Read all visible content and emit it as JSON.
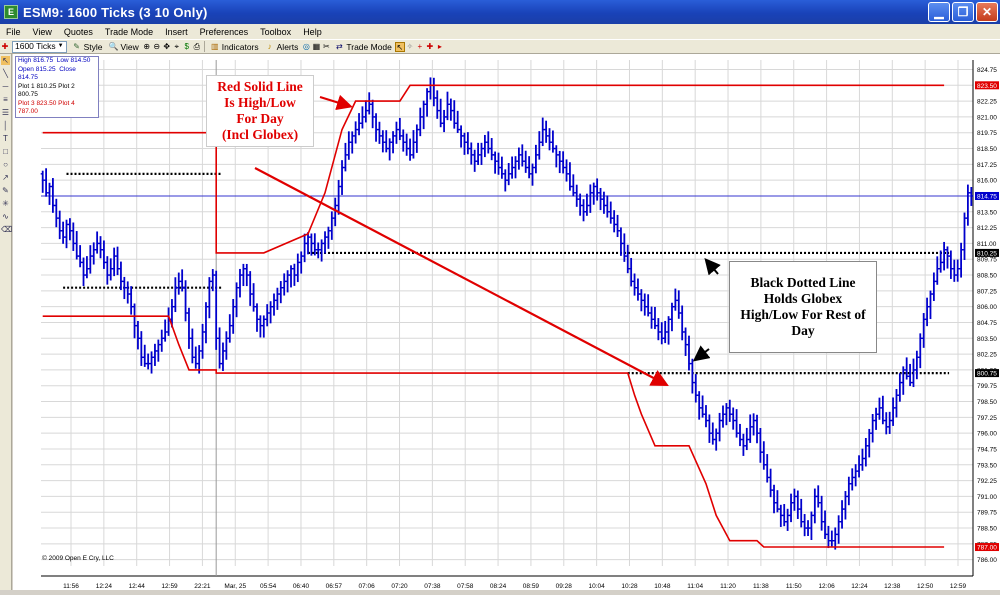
{
  "window": {
    "title": "ESM9: 1600 Ticks (3 10 Only)",
    "icon_letter": "E",
    "buttons": {
      "minimize": "▁",
      "restore": "❐",
      "close": "✕"
    }
  },
  "menu": [
    "File",
    "View",
    "Quotes",
    "Trade Mode",
    "Insert",
    "Preferences",
    "Toolbox",
    "Help"
  ],
  "toolbar": {
    "interval": "1600 Ticks",
    "style": "Style",
    "view": "View",
    "indicators": "Indicators",
    "alerts": "Alerts",
    "trade_mode": "Trade Mode"
  },
  "info_box": [
    {
      "l1": "High",
      "v1": "816.75",
      "l2": "Low",
      "v2": "814.50",
      "color": "#0000c0"
    },
    {
      "l1": "Open",
      "v1": "815.25",
      "l2": "Close",
      "v2": "814.75",
      "color": "#0000c0"
    },
    {
      "l1": "Plot 1",
      "v1": "810.25",
      "l2": "Plot 2",
      "v2": "800.75",
      "color": "#000000"
    },
    {
      "l1": "Plot 3",
      "v1": "823.50",
      "l2": "Plot 4",
      "v2": "787.00",
      "color": "#d00000"
    }
  ],
  "annotations": {
    "red": "Red Solid Line\nIs High/Low\nFor Day\n(Incl Globex)",
    "black": "Black Dotted Line\nHolds Globex\nHigh/Low For Rest of\nDay"
  },
  "copyright": "© 2009 Open E Cry, LLC",
  "colors": {
    "bars": "#0000cc",
    "red_line": "#e00000",
    "dotted": "#000000",
    "last_price": "#0000cc",
    "grid": "#d8d8d8"
  },
  "chart_data": {
    "type": "ohlc",
    "y_ticks": [
      "824.75",
      "823.50",
      "822.25",
      "821.00",
      "819.75",
      "818.50",
      "817.25",
      "816.00",
      "814.75",
      "813.50",
      "812.25",
      "811.00",
      "809.75",
      "808.50",
      "807.25",
      "806.00",
      "804.75",
      "803.50",
      "802.25",
      "801.00",
      "799.75",
      "798.50",
      "797.25",
      "796.00",
      "794.75",
      "793.50",
      "792.25",
      "791.00",
      "789.75",
      "788.50",
      "787.25",
      "786.00"
    ],
    "ylim": [
      785.5,
      825.5
    ],
    "x_ticks": [
      "11:56",
      "12:24",
      "12:44",
      "12:59",
      "22:21",
      "Mar, 25",
      "05:54",
      "06:40",
      "06:57",
      "07:06",
      "07:20",
      "07:38",
      "07:58",
      "08:24",
      "08:59",
      "09:28",
      "10:04",
      "10:28",
      "10:48",
      "11:04",
      "11:20",
      "11:38",
      "11:50",
      "12:06",
      "12:24",
      "12:38",
      "12:50",
      "12:59"
    ],
    "price_flags": [
      {
        "value": 823.5,
        "label": "823.50",
        "color": "#e00000"
      },
      {
        "value": 814.75,
        "label": "814.75",
        "color": "#0000cc"
      },
      {
        "value": 810.25,
        "label": "810.25",
        "color": "#000000"
      },
      {
        "value": 800.75,
        "label": "800.75",
        "color": "#000000"
      },
      {
        "value": 787.0,
        "label": "787.00",
        "color": "#e00000"
      }
    ],
    "last_price": 814.75,
    "red_high_line": [
      [
        0,
        819.75
      ],
      [
        51,
        819.75
      ],
      [
        51,
        810.25
      ],
      [
        65,
        810.25
      ],
      [
        78,
        811.75
      ],
      [
        83,
        815.0
      ],
      [
        88,
        820.0
      ],
      [
        92,
        822.25
      ],
      [
        105,
        822.25
      ],
      [
        108,
        823.5
      ],
      [
        265,
        823.5
      ]
    ],
    "red_low_line": [
      [
        0,
        805.25
      ],
      [
        37,
        805.25
      ],
      [
        40,
        803.0
      ],
      [
        43,
        801.0
      ],
      [
        51,
        801.0
      ],
      [
        51,
        800.75
      ],
      [
        172,
        800.75
      ],
      [
        174,
        799.0
      ],
      [
        176,
        797.5
      ],
      [
        180,
        795.0
      ],
      [
        190,
        795.0
      ],
      [
        195,
        792.0
      ],
      [
        198,
        789.5
      ],
      [
        202,
        787.5
      ],
      [
        210,
        787.5
      ],
      [
        212,
        787.0
      ],
      [
        265,
        787.0
      ]
    ],
    "dotted_lines": [
      {
        "from": 7,
        "to": 51,
        "value": 816.5
      },
      {
        "from": 6,
        "to": 51,
        "value": 807.5
      },
      {
        "from": 78,
        "to": 265,
        "value": 810.25
      },
      {
        "from": 172,
        "to": 265,
        "value": 800.75
      }
    ],
    "closes": [
      816,
      815,
      815.5,
      814,
      813,
      812,
      811.5,
      812.5,
      812,
      811,
      810,
      809.5,
      808.5,
      809,
      810,
      810.5,
      811,
      810.5,
      809.5,
      808.5,
      809,
      810,
      809,
      808,
      807.5,
      807,
      806,
      804.5,
      803.5,
      802,
      801.5,
      801.5,
      802,
      802.5,
      803,
      803.5,
      804,
      805,
      806,
      807.5,
      808,
      807.5,
      805.5,
      803.5,
      802,
      801.5,
      802.5,
      804,
      806,
      808,
      808.5,
      803.5,
      801.5,
      802.5,
      803.5,
      804.5,
      806,
      807.5,
      808.5,
      809,
      808.5,
      807,
      806,
      805,
      804.5,
      805,
      805.5,
      806,
      806.5,
      807,
      807.5,
      808,
      808.5,
      809,
      808.5,
      809.5,
      810,
      811,
      811.5,
      811,
      810.5,
      810.5,
      811,
      811.5,
      812,
      813,
      814,
      815.5,
      817,
      818,
      819,
      819.5,
      820,
      820.5,
      821,
      821.5,
      822,
      821,
      820,
      819.5,
      819,
      818.5,
      819,
      819.5,
      820,
      819.5,
      819,
      818.5,
      818,
      819,
      820,
      821,
      822,
      823,
      823.5,
      822.5,
      821.5,
      820.5,
      821,
      822,
      821.5,
      820.5,
      820,
      819.5,
      819,
      818.5,
      818,
      817.5,
      818,
      818.5,
      819,
      818.5,
      818,
      817.5,
      817,
      816.5,
      816,
      816.5,
      817,
      817.5,
      818,
      817.5,
      817,
      816.5,
      817,
      818,
      819,
      820,
      819.5,
      819,
      818.5,
      818,
      817.5,
      817,
      816.5,
      815.5,
      815,
      814.5,
      814,
      813.5,
      814,
      815,
      815.5,
      815,
      814.5,
      814,
      813.5,
      813,
      812.5,
      812,
      811,
      810,
      809,
      808,
      807.5,
      807,
      806.5,
      806,
      805.5,
      805,
      804.5,
      804,
      803.5,
      804,
      805,
      806,
      806.5,
      805.5,
      804,
      803,
      801.5,
      800,
      799,
      798,
      797.5,
      797,
      796,
      795.5,
      796,
      797,
      797.5,
      798,
      797.5,
      797,
      796,
      795.5,
      795,
      795.5,
      796.5,
      797,
      796,
      794.5,
      793.5,
      792.5,
      791.5,
      790.5,
      790,
      789.5,
      789,
      789.5,
      790.5,
      791,
      790,
      789,
      788.5,
      788.5,
      789.5,
      791,
      790.5,
      789,
      788,
      787.5,
      787.5,
      788,
      789,
      790,
      791,
      792,
      792.5,
      793,
      793.5,
      794,
      795,
      796,
      797,
      797.5,
      798,
      797,
      796.5,
      797,
      798,
      799,
      800,
      801,
      800.5,
      800,
      801,
      802,
      803.5,
      805,
      806,
      807,
      808,
      809,
      809.5,
      810.5,
      810,
      809,
      808.5,
      809,
      810.5,
      813,
      815,
      814.75
    ]
  }
}
